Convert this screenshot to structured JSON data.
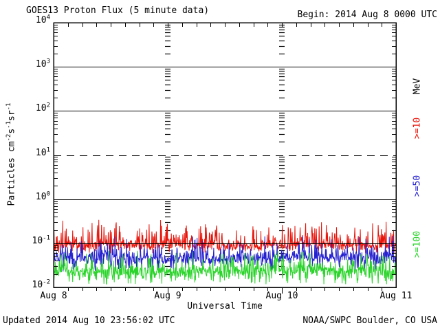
{
  "header": {
    "title": "GOES13 Proton Flux (5 minute data)",
    "begin_label": "Begin: 2014 Aug 8 0000 UTC"
  },
  "footer": {
    "updated": "Updated 2014 Aug 10 23:56:02 UTC",
    "credit": "NOAA/SWPC Boulder, CO USA"
  },
  "chart_data": {
    "type": "line",
    "title": "GOES13 Proton Flux (5 minute data)",
    "xlabel": "Universal Time",
    "ylabel_plain": "Particles cm-2 s-1 sr-1",
    "ylabel_segments": [
      {
        "t": "Particles cm"
      },
      {
        "t": "-2",
        "sup": true
      },
      {
        "t": "s"
      },
      {
        "t": "-1",
        "sup": true
      },
      {
        "t": "sr"
      },
      {
        "t": "-1",
        "sup": true
      }
    ],
    "right_axis_label": "MeV",
    "x_start": "2014 Aug 8 0000 UTC",
    "x_end": "2014 Aug 11 0000 UTC",
    "x_ticks": [
      "Aug 8",
      "Aug 9",
      "Aug 10",
      "Aug 11"
    ],
    "x_minor_tick_hours": 3,
    "y_scale": "log10",
    "y_tick_exponents": [
      4,
      3,
      2,
      1,
      0,
      -1,
      -2
    ],
    "ylim": [
      0.01,
      10000
    ],
    "grid": {
      "solid_line_exponents": [
        3,
        2,
        0,
        -1
      ],
      "dashed_line_exponents": [
        1
      ],
      "interior_day_tick_columns": [
        "Aug 9",
        "Aug 10"
      ]
    },
    "samples_per_day": 288,
    "days": 3,
    "series": [
      {
        "label": ">=10",
        "name": ">=10 MeV proton flux",
        "color": "#e81309",
        "approx_median_flux": 0.1,
        "approx_range_flux": [
          0.06,
          0.38
        ],
        "gen": {
          "seed": 101,
          "base": -1.05,
          "sd": 0.05,
          "spike_p": 0.42,
          "spike_amp": 0.52,
          "dip_p": 0.25,
          "dip_amp": 0.14,
          "min": -1.23,
          "max": -0.43
        }
      },
      {
        "label": ">=50",
        "name": ">=50 MeV proton flux",
        "color": "#2420cf",
        "approx_median_flux": 0.047,
        "approx_range_flux": [
          0.022,
          0.15
        ],
        "gen": {
          "seed": 202,
          "base": -1.33,
          "sd": 0.07,
          "spike_p": 0.33,
          "spike_amp": 0.45,
          "dip_p": 0.3,
          "dip_amp": 0.26,
          "min": -1.65,
          "max": -0.83
        }
      },
      {
        "label": ">=100",
        "name": ">=100 MeV proton flux",
        "color": "#2bd42b",
        "approx_median_flux": 0.024,
        "approx_range_flux": [
          0.012,
          0.065
        ],
        "gen": {
          "seed": 303,
          "base": -1.63,
          "sd": 0.08,
          "spike_p": 0.33,
          "spike_amp": 0.4,
          "dip_p": 0.35,
          "dip_amp": 0.28,
          "min": -1.93,
          "max": -1.17
        }
      }
    ]
  }
}
